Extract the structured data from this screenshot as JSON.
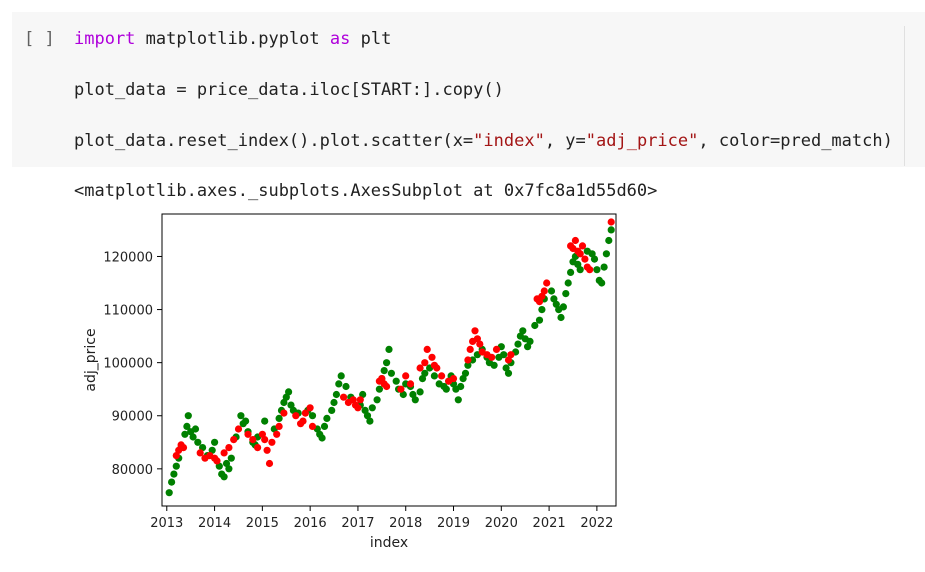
{
  "cell": {
    "run_indicator": "[ ]",
    "lines": [
      {
        "keyword": "import",
        "mid": " matplotlib.pyplot ",
        "keyword2": "as",
        "rest": " plt"
      },
      {
        "text": "plot_data = price_data.iloc[START:].copy()"
      },
      {
        "pre": "plot_data.reset_index().plot.scatter(x=",
        "s1": "\"index\"",
        "mid": ", y=",
        "s2": "\"adj_price\"",
        "post": ", color=pred_match)"
      }
    ]
  },
  "output": {
    "repr": "<matplotlib.axes._subplots.AxesSubplot at 0x7fc8a1d55d60>"
  },
  "colors": {
    "match": "#008000",
    "miss": "#ff0000"
  },
  "chart_data": {
    "type": "scatter",
    "xlabel": "index",
    "ylabel": "adj_price",
    "xlim": [
      2012.9,
      2022.4
    ],
    "ylim": [
      73000,
      128000
    ],
    "xticks": [
      "2013",
      "2014",
      "2015",
      "2016",
      "2017",
      "2018",
      "2019",
      "2020",
      "2021",
      "2022"
    ],
    "xtick_values": [
      2013,
      2014,
      2015,
      2016,
      2017,
      2018,
      2019,
      2020,
      2021,
      2022
    ],
    "yticks": [
      "80000",
      "90000",
      "100000",
      "110000",
      "120000"
    ],
    "ytick_values": [
      80000,
      90000,
      100000,
      110000,
      120000
    ],
    "grid": false,
    "series": [
      {
        "color": "green",
        "points": [
          [
            2013.05,
            75500
          ],
          [
            2013.1,
            77500
          ],
          [
            2013.15,
            79000
          ],
          [
            2013.2,
            80500
          ],
          [
            2013.25,
            82000
          ],
          [
            2013.3,
            84000
          ],
          [
            2013.38,
            86500
          ],
          [
            2013.42,
            88000
          ],
          [
            2013.45,
            90000
          ],
          [
            2013.5,
            87000
          ],
          [
            2013.55,
            86000
          ],
          [
            2013.6,
            87500
          ],
          [
            2013.65,
            85000
          ],
          [
            2013.75,
            84000
          ],
          [
            2013.85,
            82500
          ],
          [
            2013.95,
            83500
          ],
          [
            2014.0,
            85000
          ],
          [
            2014.1,
            80500
          ],
          [
            2014.15,
            79000
          ],
          [
            2014.2,
            78500
          ],
          [
            2014.25,
            81000
          ],
          [
            2014.3,
            80000
          ],
          [
            2014.35,
            82000
          ],
          [
            2014.45,
            86000
          ],
          [
            2014.55,
            90000
          ],
          [
            2014.6,
            88500
          ],
          [
            2014.65,
            89000
          ],
          [
            2014.7,
            87000
          ],
          [
            2014.8,
            85000
          ],
          [
            2014.85,
            84500
          ],
          [
            2014.9,
            86000
          ],
          [
            2015.05,
            89000
          ],
          [
            2015.25,
            87500
          ],
          [
            2015.35,
            89500
          ],
          [
            2015.4,
            91000
          ],
          [
            2015.45,
            92500
          ],
          [
            2015.5,
            93500
          ],
          [
            2015.55,
            94500
          ],
          [
            2015.6,
            92000
          ],
          [
            2015.65,
            91000
          ],
          [
            2015.75,
            90500
          ],
          [
            2015.95,
            91000
          ],
          [
            2016.05,
            90000
          ],
          [
            2016.15,
            87500
          ],
          [
            2016.2,
            86500
          ],
          [
            2016.25,
            85800
          ],
          [
            2016.3,
            88000
          ],
          [
            2016.35,
            89500
          ],
          [
            2016.45,
            91000
          ],
          [
            2016.5,
            92500
          ],
          [
            2016.55,
            94000
          ],
          [
            2016.6,
            96000
          ],
          [
            2016.65,
            97500
          ],
          [
            2016.75,
            95500
          ],
          [
            2016.85,
            93500
          ],
          [
            2017.05,
            92000
          ],
          [
            2017.1,
            94000
          ],
          [
            2017.15,
            91000
          ],
          [
            2017.2,
            90000
          ],
          [
            2017.25,
            89000
          ],
          [
            2017.3,
            91500
          ],
          [
            2017.4,
            93000
          ],
          [
            2017.45,
            95000
          ],
          [
            2017.5,
            97000
          ],
          [
            2017.55,
            98500
          ],
          [
            2017.6,
            100000
          ],
          [
            2017.65,
            102500
          ],
          [
            2017.7,
            98000
          ],
          [
            2017.8,
            96500
          ],
          [
            2017.85,
            95000
          ],
          [
            2017.95,
            94000
          ],
          [
            2018.0,
            96000
          ],
          [
            2018.1,
            95500
          ],
          [
            2018.15,
            94000
          ],
          [
            2018.2,
            93000
          ],
          [
            2018.3,
            94500
          ],
          [
            2018.35,
            97000
          ],
          [
            2018.4,
            98000
          ],
          [
            2018.5,
            99000
          ],
          [
            2018.6,
            97500
          ],
          [
            2018.7,
            96000
          ],
          [
            2018.8,
            95500
          ],
          [
            2018.85,
            95000
          ],
          [
            2018.9,
            96500
          ],
          [
            2018.95,
            97500
          ],
          [
            2019.0,
            96000
          ],
          [
            2019.05,
            95000
          ],
          [
            2019.1,
            93000
          ],
          [
            2019.15,
            95500
          ],
          [
            2019.2,
            97000
          ],
          [
            2019.25,
            98000
          ],
          [
            2019.3,
            99500
          ],
          [
            2019.4,
            100500
          ],
          [
            2019.5,
            101500
          ],
          [
            2019.6,
            102500
          ],
          [
            2019.7,
            101000
          ],
          [
            2019.75,
            100000
          ],
          [
            2019.85,
            99500
          ],
          [
            2019.95,
            101000
          ],
          [
            2020.0,
            103000
          ],
          [
            2020.05,
            101500
          ],
          [
            2020.1,
            99000
          ],
          [
            2020.15,
            98000
          ],
          [
            2020.2,
            100000
          ],
          [
            2020.3,
            102000
          ],
          [
            2020.35,
            103500
          ],
          [
            2020.4,
            105000
          ],
          [
            2020.45,
            106000
          ],
          [
            2020.5,
            104500
          ],
          [
            2020.55,
            103000
          ],
          [
            2020.6,
            104000
          ],
          [
            2020.7,
            107000
          ],
          [
            2020.8,
            108000
          ],
          [
            2020.85,
            110000
          ],
          [
            2020.9,
            112000
          ],
          [
            2021.05,
            113500
          ],
          [
            2021.1,
            112000
          ],
          [
            2021.15,
            111000
          ],
          [
            2021.2,
            110000
          ],
          [
            2021.25,
            108500
          ],
          [
            2021.3,
            110500
          ],
          [
            2021.35,
            113000
          ],
          [
            2021.4,
            115000
          ],
          [
            2021.45,
            117000
          ],
          [
            2021.5,
            119000
          ],
          [
            2021.55,
            120000
          ],
          [
            2021.6,
            118500
          ],
          [
            2021.65,
            117500
          ],
          [
            2021.8,
            121000
          ],
          [
            2021.9,
            120500
          ],
          [
            2021.95,
            119500
          ],
          [
            2022.0,
            117500
          ],
          [
            2022.05,
            115500
          ],
          [
            2022.1,
            115000
          ],
          [
            2022.15,
            118000
          ],
          [
            2022.2,
            120500
          ],
          [
            2022.25,
            123000
          ],
          [
            2022.3,
            125000
          ]
        ]
      },
      {
        "color": "red",
        "points": [
          [
            2013.2,
            82500
          ],
          [
            2013.25,
            83500
          ],
          [
            2013.3,
            84500
          ],
          [
            2013.35,
            84000
          ],
          [
            2013.7,
            83000
          ],
          [
            2013.8,
            82000
          ],
          [
            2013.9,
            82500
          ],
          [
            2014.0,
            82000
          ],
          [
            2014.05,
            81500
          ],
          [
            2014.2,
            83000
          ],
          [
            2014.3,
            84000
          ],
          [
            2014.4,
            85500
          ],
          [
            2014.5,
            87500
          ],
          [
            2014.7,
            86500
          ],
          [
            2014.8,
            85500
          ],
          [
            2014.9,
            84000
          ],
          [
            2015.0,
            86500
          ],
          [
            2015.05,
            85500
          ],
          [
            2015.1,
            83500
          ],
          [
            2015.15,
            81000
          ],
          [
            2015.2,
            85000
          ],
          [
            2015.3,
            86500
          ],
          [
            2015.35,
            88000
          ],
          [
            2015.45,
            90500
          ],
          [
            2015.7,
            90000
          ],
          [
            2015.8,
            88500
          ],
          [
            2015.85,
            89000
          ],
          [
            2015.9,
            90500
          ],
          [
            2016.0,
            91500
          ],
          [
            2016.05,
            88000
          ],
          [
            2016.7,
            93500
          ],
          [
            2016.8,
            92500
          ],
          [
            2016.9,
            93000
          ],
          [
            2016.95,
            92000
          ],
          [
            2017.0,
            91500
          ],
          [
            2017.05,
            93000
          ],
          [
            2017.45,
            96500
          ],
          [
            2017.5,
            97000
          ],
          [
            2017.55,
            96000
          ],
          [
            2017.6,
            95500
          ],
          [
            2017.9,
            95000
          ],
          [
            2018.0,
            97500
          ],
          [
            2018.1,
            96000
          ],
          [
            2018.3,
            99000
          ],
          [
            2018.4,
            100000
          ],
          [
            2018.45,
            102500
          ],
          [
            2018.55,
            101000
          ],
          [
            2018.6,
            99500
          ],
          [
            2018.65,
            99000
          ],
          [
            2018.75,
            97500
          ],
          [
            2018.9,
            96500
          ],
          [
            2019.0,
            97000
          ],
          [
            2019.3,
            100500
          ],
          [
            2019.35,
            102500
          ],
          [
            2019.4,
            104000
          ],
          [
            2019.45,
            106000
          ],
          [
            2019.5,
            104500
          ],
          [
            2019.55,
            103500
          ],
          [
            2019.6,
            102000
          ],
          [
            2019.7,
            101500
          ],
          [
            2019.8,
            101000
          ],
          [
            2019.9,
            102500
          ],
          [
            2020.15,
            100500
          ],
          [
            2020.2,
            101500
          ],
          [
            2020.75,
            112000
          ],
          [
            2020.8,
            111500
          ],
          [
            2020.85,
            112500
          ],
          [
            2020.9,
            113500
          ],
          [
            2020.95,
            115000
          ],
          [
            2021.45,
            122000
          ],
          [
            2021.5,
            121500
          ],
          [
            2021.55,
            123000
          ],
          [
            2021.6,
            121000
          ],
          [
            2021.65,
            120500
          ],
          [
            2021.7,
            122000
          ],
          [
            2021.75,
            119500
          ],
          [
            2021.8,
            118000
          ],
          [
            2021.85,
            117500
          ],
          [
            2022.3,
            126500
          ]
        ]
      }
    ]
  }
}
